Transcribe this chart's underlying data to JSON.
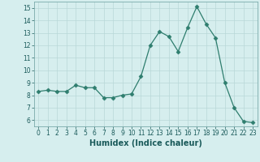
{
  "x": [
    0,
    1,
    2,
    3,
    4,
    5,
    6,
    7,
    8,
    9,
    10,
    11,
    12,
    13,
    14,
    15,
    16,
    17,
    18,
    19,
    20,
    21,
    22,
    23
  ],
  "y": [
    8.3,
    8.4,
    8.3,
    8.3,
    8.8,
    8.6,
    8.6,
    7.8,
    7.8,
    8.0,
    8.1,
    9.5,
    12.0,
    13.1,
    12.7,
    11.5,
    13.4,
    15.1,
    13.7,
    12.6,
    9.0,
    7.0,
    5.9,
    5.8
  ],
  "line_color": "#2e7d6e",
  "marker": "D",
  "marker_size": 2.5,
  "bg_color": "#d6eeee",
  "grid_color": "#b8d8d8",
  "xlabel": "Humidex (Indice chaleur)",
  "xlim": [
    -0.5,
    23.5
  ],
  "ylim": [
    5.5,
    15.5
  ],
  "yticks": [
    6,
    7,
    8,
    9,
    10,
    11,
    12,
    13,
    14,
    15
  ],
  "xticks": [
    0,
    1,
    2,
    3,
    4,
    5,
    6,
    7,
    8,
    9,
    10,
    11,
    12,
    13,
    14,
    15,
    16,
    17,
    18,
    19,
    20,
    21,
    22,
    23
  ],
  "tick_fontsize": 5.5,
  "label_fontsize": 7.0
}
